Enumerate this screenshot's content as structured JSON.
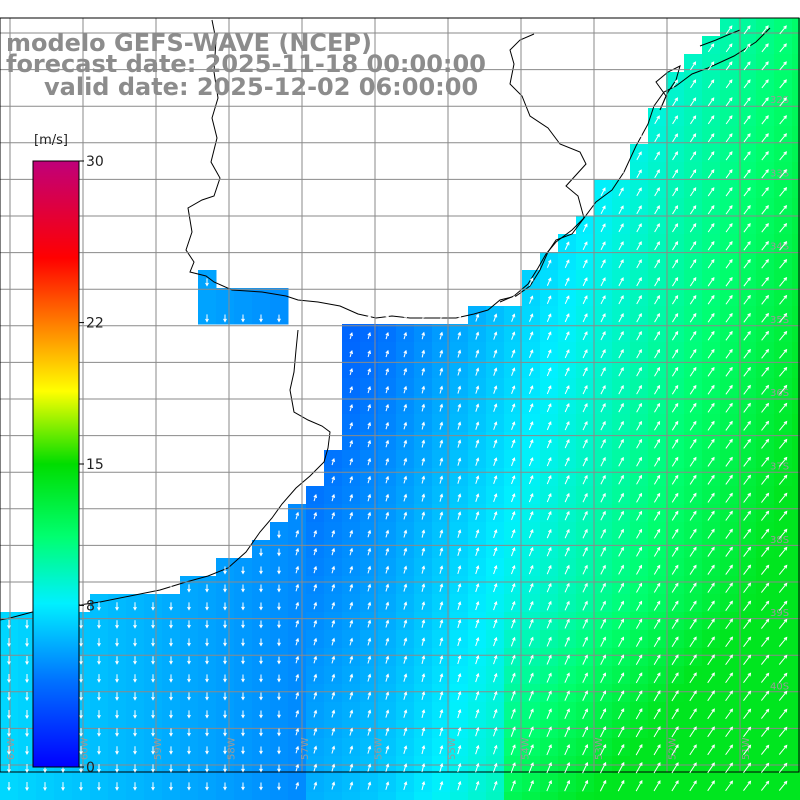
{
  "title": {
    "line1": "modelo GEFS-WAVE (NCEP)",
    "line2": "forecast date: 2025-11-18 00:00:00",
    "line3": "valid date: 2025-12-02 06:00:00"
  },
  "colorbar": {
    "unit": "[m/s]",
    "min": 0,
    "max": 30,
    "ticks": [
      {
        "value": 30,
        "label": "30"
      },
      {
        "value": 22,
        "label": "22"
      },
      {
        "value": 15,
        "label": "15"
      },
      {
        "value": 8,
        "label": "8"
      },
      {
        "value": 0,
        "label": "0"
      }
    ]
  },
  "grid": {
    "lon_labels": [
      "61W",
      "60W",
      "59W",
      "58W",
      "57W",
      "56W",
      "55W",
      "54W",
      "53W",
      "52W",
      "51W"
    ],
    "lat_labels": [
      "32S",
      "33S",
      "34S",
      "35S",
      "36S",
      "37S",
      "38S",
      "39S",
      "40S"
    ]
  }
}
